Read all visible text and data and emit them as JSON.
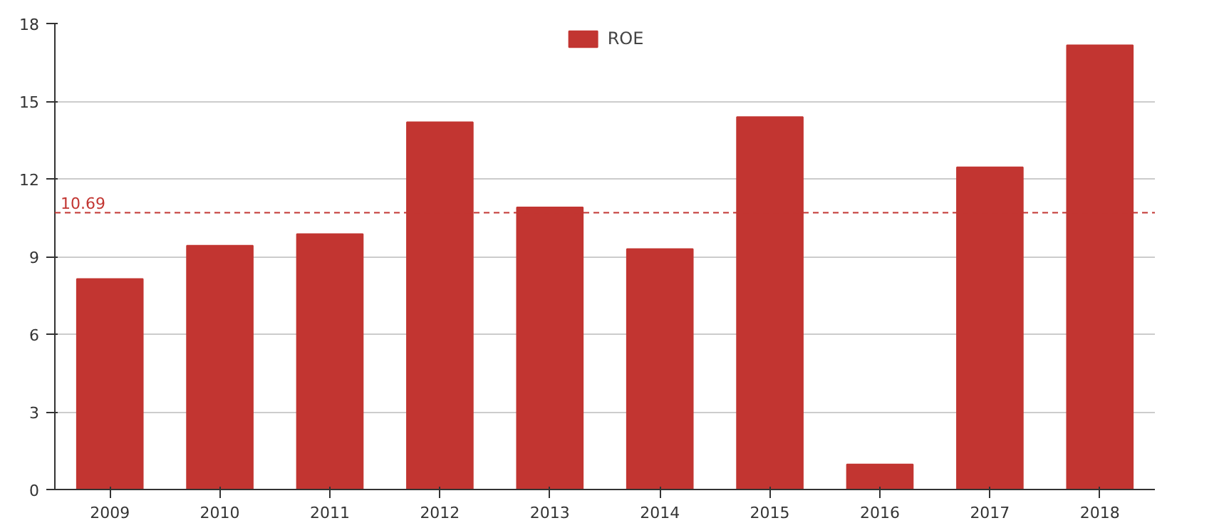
{
  "chart_data": {
    "type": "bar",
    "categories": [
      "2009",
      "2010",
      "2011",
      "2012",
      "2013",
      "2014",
      "2015",
      "2016",
      "2017",
      "2018"
    ],
    "series": [
      {
        "name": "ROE",
        "color": "#c23531",
        "values": [
          8.13,
          9.42,
          9.87,
          14.19,
          10.9,
          9.29,
          14.39,
          0.97,
          12.45,
          17.16
        ]
      }
    ],
    "ylim": [
      0,
      18
    ],
    "yticks": [
      0,
      3,
      6,
      9,
      12,
      15,
      18
    ],
    "grid": "y",
    "legend": "top",
    "ref_lines": [
      {
        "axis": "y",
        "value": 10.69,
        "label": "10.69",
        "color": "#c23531",
        "line_style": "dashed"
      }
    ]
  }
}
